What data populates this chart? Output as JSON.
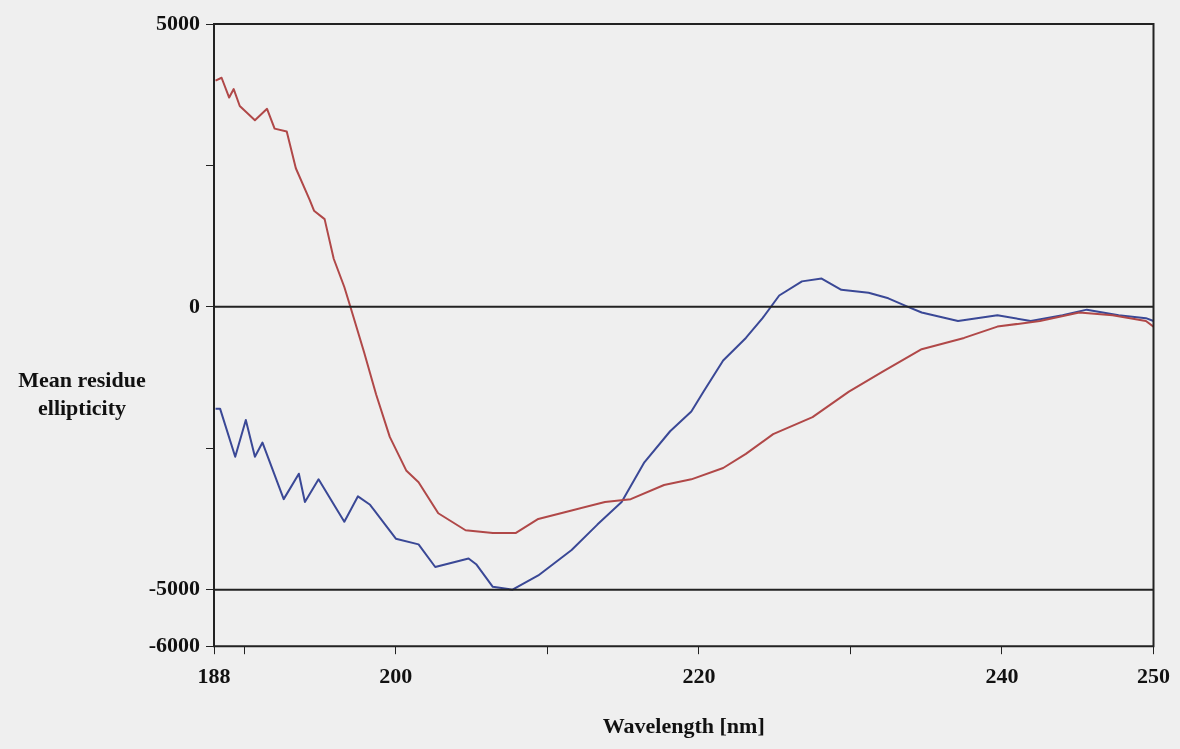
{
  "chart_data": {
    "type": "line",
    "xlabel": "Wavelength [nm]",
    "ylabel": "Mean residue ellipticity",
    "xlim": [
      188,
      250
    ],
    "xticks": [
      188,
      {
        "value": 190,
        "label": null
      },
      200,
      {
        "value": 210,
        "label": null
      },
      220,
      {
        "value": 230,
        "label": null
      },
      240,
      250
    ],
    "ylim": [
      -6000,
      5000
    ],
    "yticks": [
      -6000,
      -5000,
      {
        "value": -2500,
        "label": null
      },
      0,
      {
        "value": 2500,
        "label": null
      },
      5000
    ],
    "grid": false,
    "legend": false,
    "marker": "none",
    "line_style": "solid",
    "ref_lines": [
      {
        "axis": "y",
        "value": 0,
        "color": "#222222"
      },
      {
        "axis": "y",
        "value": -5000,
        "color": "#222222"
      }
    ],
    "series": [
      {
        "color": "#b04848",
        "x": [
          188.1,
          188.5,
          189.0,
          189.3,
          189.7,
          190.7,
          191.5,
          192.0,
          192.8,
          193.4,
          194.3,
          194.6,
          195.3,
          195.9,
          196.6,
          197.0,
          197.9,
          198.7,
          199.6,
          200.7,
          201.5,
          202.8,
          204.6,
          206.4,
          207.9,
          209.4,
          211.6,
          213.8,
          215.5,
          217.7,
          219.5,
          221.6,
          223.1,
          224.9,
          227.5,
          229.9,
          232.1,
          234.7,
          237.5,
          239.7,
          242.5,
          245.1,
          247.3,
          249.5,
          250
        ],
        "values": [
          4000,
          4050,
          3700,
          3850,
          3550,
          3300,
          3500,
          3150,
          3100,
          2450,
          1900,
          1700,
          1550,
          850,
          350,
          0,
          -800,
          -1550,
          -2300,
          -2900,
          -3100,
          -3650,
          -3950,
          -4000,
          -4000,
          -3750,
          -3600,
          -3450,
          -3400,
          -3150,
          -3050,
          -2850,
          -2600,
          -2250,
          -1950,
          -1500,
          -1150,
          -750,
          -550,
          -350,
          -250,
          -100,
          -150,
          -250,
          -350
        ]
      },
      {
        "color": "#3a4896",
        "x": [
          188.1,
          188.4,
          189.4,
          190.1,
          190.7,
          191.2,
          192.6,
          193.6,
          194.0,
          194.9,
          196.6,
          197.5,
          198.3,
          200.0,
          201.5,
          202.6,
          204.8,
          205.3,
          206.4,
          207.7,
          209.4,
          211.6,
          213.3,
          214.9,
          216.4,
          218.1,
          219.5,
          220.3,
          221.6,
          223.1,
          224.2,
          225.3,
          226.8,
          228.1,
          229.4,
          231.2,
          232.5,
          233.8,
          234.7,
          237.1,
          239.7,
          241.9,
          244.0,
          245.6,
          247.7,
          249.5,
          250
        ],
        "values": [
          -1800,
          -1800,
          -2650,
          -2000,
          -2650,
          -2400,
          -3400,
          -2950,
          -3450,
          -3050,
          -3800,
          -3350,
          -3500,
          -4100,
          -4200,
          -4600,
          -4450,
          -4550,
          -4950,
          -5000,
          -4750,
          -4300,
          -3850,
          -3450,
          -2750,
          -2200,
          -1850,
          -1500,
          -950,
          -550,
          -200,
          200,
          450,
          500,
          300,
          250,
          150,
          0,
          -100,
          -250,
          -150,
          -250,
          -150,
          -50,
          -150,
          -200,
          -250
        ]
      }
    ]
  }
}
